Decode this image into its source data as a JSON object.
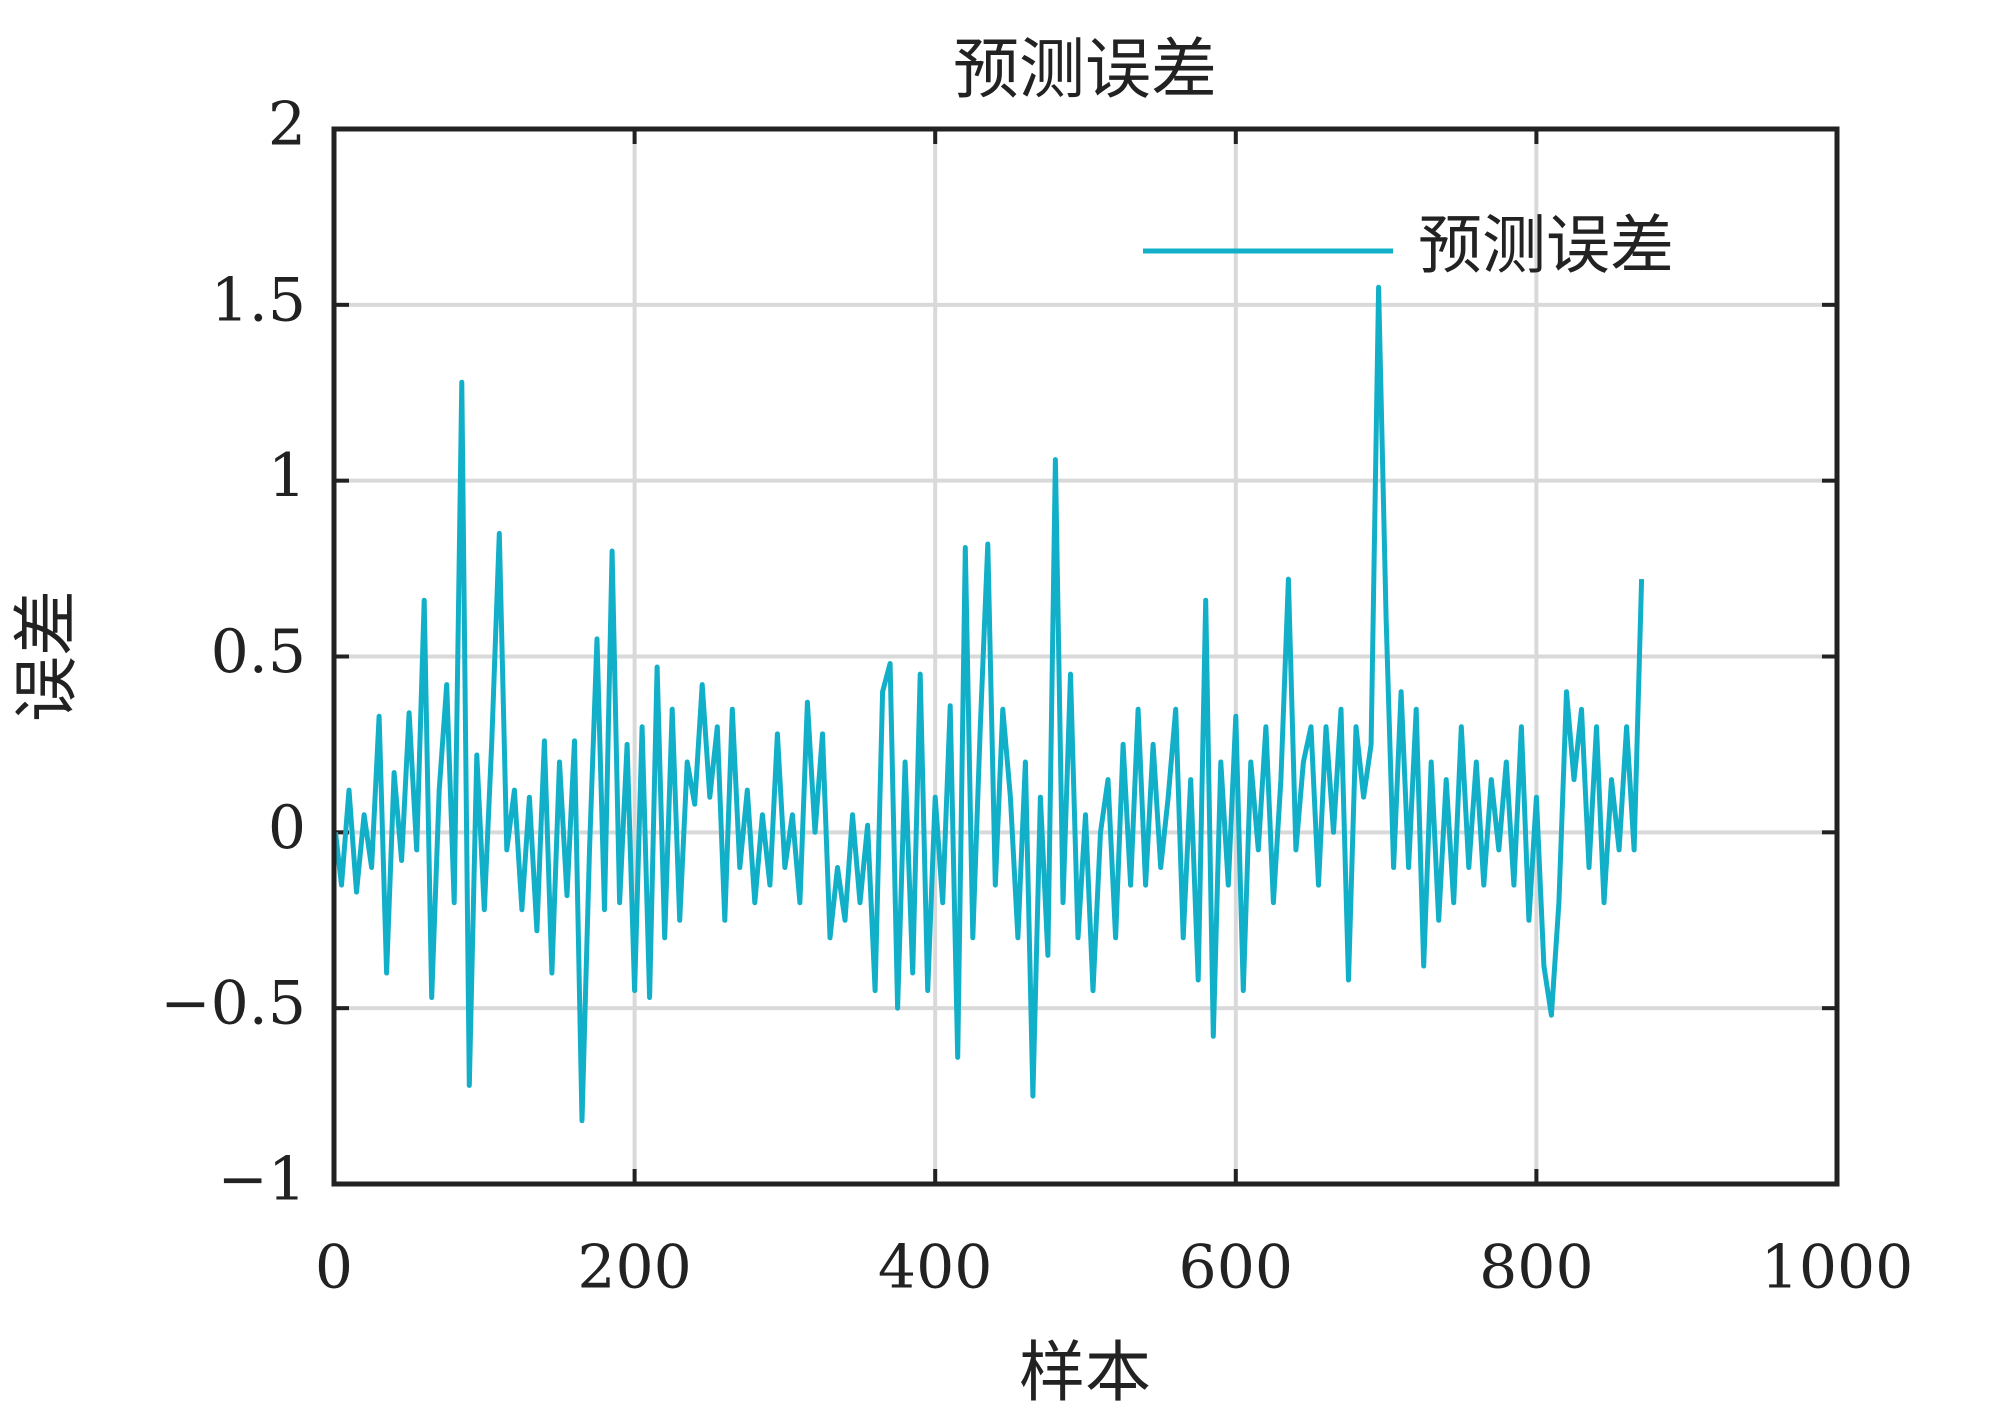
{
  "chart_data": {
    "type": "line",
    "title": "预测误差",
    "xlabel": "样本",
    "ylabel": "误差",
    "x": [
      1,
      5,
      10,
      15,
      20,
      25,
      30,
      35,
      40,
      45,
      50,
      55,
      60,
      65,
      70,
      75,
      80,
      85,
      90,
      95,
      100,
      105,
      110,
      115,
      120,
      125,
      130,
      135,
      140,
      145,
      150,
      155,
      160,
      165,
      170,
      175,
      180,
      185,
      190,
      195,
      200,
      205,
      210,
      215,
      220,
      225,
      230,
      235,
      240,
      245,
      250,
      255,
      260,
      265,
      270,
      275,
      280,
      285,
      290,
      295,
      300,
      305,
      310,
      315,
      320,
      325,
      330,
      335,
      340,
      345,
      350,
      355,
      360,
      365,
      370,
      375,
      380,
      385,
      390,
      395,
      400,
      405,
      410,
      415,
      420,
      425,
      430,
      435,
      440,
      445,
      450,
      455,
      460,
      465,
      470,
      475,
      480,
      485,
      490,
      495,
      500,
      505,
      510,
      515,
      520,
      525,
      530,
      535,
      540,
      545,
      550,
      555,
      560,
      565,
      570,
      575,
      580,
      585,
      590,
      595,
      600,
      605,
      610,
      615,
      620,
      625,
      630,
      635,
      640,
      645,
      650,
      655,
      660,
      665,
      670,
      675,
      680,
      685,
      690,
      695,
      700,
      705,
      710,
      715,
      720,
      725,
      730,
      735,
      740,
      745,
      750,
      755,
      760,
      765,
      770,
      775,
      780,
      785,
      790,
      795,
      800,
      805,
      810,
      815,
      820,
      825,
      830,
      835,
      840,
      845,
      850,
      855,
      860,
      865,
      870
    ],
    "series": [
      {
        "name": "预测误差",
        "color": "#12b0c8",
        "values": [
          0.0,
          -0.15,
          0.12,
          -0.17,
          0.05,
          -0.1,
          0.33,
          -0.4,
          0.17,
          -0.08,
          0.34,
          -0.05,
          0.66,
          -0.47,
          0.12,
          0.42,
          -0.2,
          1.28,
          -0.72,
          0.22,
          -0.22,
          0.26,
          0.85,
          -0.05,
          0.12,
          -0.22,
          0.1,
          -0.28,
          0.26,
          -0.4,
          0.2,
          -0.18,
          0.26,
          -0.82,
          -0.05,
          0.55,
          -0.22,
          0.8,
          -0.2,
          0.25,
          -0.45,
          0.3,
          -0.47,
          0.47,
          -0.3,
          0.35,
          -0.25,
          0.2,
          0.08,
          0.42,
          0.1,
          0.3,
          -0.25,
          0.35,
          -0.1,
          0.12,
          -0.2,
          0.05,
          -0.15,
          0.28,
          -0.1,
          0.05,
          -0.2,
          0.37,
          0.0,
          0.28,
          -0.3,
          -0.1,
          -0.25,
          0.05,
          -0.2,
          0.02,
          -0.45,
          0.4,
          0.48,
          -0.5,
          0.2,
          -0.4,
          0.45,
          -0.45,
          0.1,
          -0.2,
          0.36,
          -0.64,
          0.81,
          -0.3,
          0.3,
          0.82,
          -0.15,
          0.35,
          0.1,
          -0.3,
          0.2,
          -0.75,
          0.1,
          -0.35,
          1.06,
          -0.2,
          0.45,
          -0.3,
          0.05,
          -0.45,
          0.0,
          0.15,
          -0.3,
          0.25,
          -0.15,
          0.35,
          -0.15,
          0.25,
          -0.1,
          0.1,
          0.35,
          -0.3,
          0.15,
          -0.42,
          0.66,
          -0.58,
          0.2,
          -0.15,
          0.33,
          -0.45,
          0.2,
          -0.05,
          0.3,
          -0.2,
          0.15,
          0.72,
          -0.05,
          0.2,
          0.3,
          -0.15,
          0.3,
          0.0,
          0.35,
          -0.42,
          0.3,
          0.1,
          0.25,
          1.55,
          0.61,
          -0.1,
          0.4,
          -0.1,
          0.35,
          -0.38,
          0.2,
          -0.25,
          0.15,
          -0.2,
          0.3,
          -0.1,
          0.2,
          -0.15,
          0.15,
          -0.05,
          0.2,
          -0.15,
          0.3,
          -0.25,
          0.1,
          -0.38,
          -0.52,
          -0.2,
          0.4,
          0.15,
          0.35,
          -0.1,
          0.3,
          -0.2,
          0.15,
          -0.05,
          0.3,
          -0.05,
          0.72
        ]
      }
    ],
    "xlim": [
      0,
      1000
    ],
    "xticks": [
      0,
      200,
      400,
      600,
      800,
      1000
    ],
    "ylim": [
      -1,
      2
    ],
    "yticks": [
      {
        "value": -1,
        "label": "−1"
      },
      {
        "value": -0.5,
        "label": "−0.5"
      },
      0,
      0.5,
      1,
      1.5,
      2
    ],
    "grid": true,
    "legend": "upper right"
  }
}
